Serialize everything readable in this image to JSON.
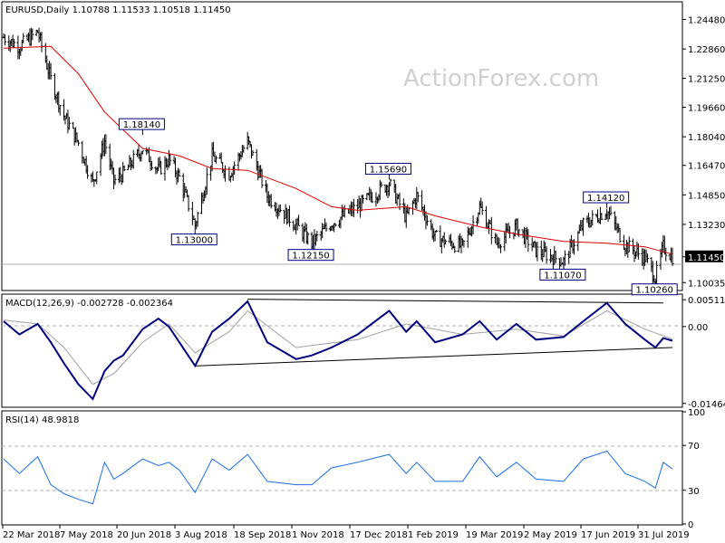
{
  "header": {
    "symbol_line": "EURUSD,Daily  1.10788 1.11533 1.10518 1.11450",
    "macd_label": "MACD(12,26,9) -0.002728 -0.002364",
    "rsi_label": "RSI(14) 48.9818"
  },
  "watermark": "ActionForex.com",
  "colors": {
    "background": "#ffffff",
    "frame": "#000000",
    "price_bars": "#000000",
    "moving_average": "#e00000",
    "macd_line": "#000080",
    "macd_signal": "#a0a0a0",
    "rsi_line": "#1a6ee6",
    "trendline": "#000000",
    "label_box_border": "#000080",
    "current_price_box": "#000000",
    "current_price_text": "#ffffff",
    "grid_dash": "#b0b0b0"
  },
  "chart_data": [
    {
      "type": "ohlc",
      "panel": "price",
      "y_ticks": [
        "1.24480",
        "1.22860",
        "1.21250",
        "1.19660",
        "1.18040",
        "1.16470",
        "1.14850",
        "1.13230",
        "1.11450",
        "1.10035"
      ],
      "ylim": [
        1.0965,
        1.254
      ],
      "current_price": "1.11450",
      "x_ticks": [
        "22 Mar 2018",
        "7 May 2018",
        "20 Jun 2018",
        "3 Aug 2018",
        "18 Sep 2018",
        "1 Nov 2018",
        "17 Dec 2018",
        "1 Feb 2019",
        "19 Mar 2019",
        "2 May 2019",
        "17 Jun 2019",
        "31 Jul 2019"
      ],
      "series_close": [
        [
          "2018-03-22",
          1.235
        ],
        [
          "2018-04-03",
          1.23
        ],
        [
          "2018-04-17",
          1.238
        ],
        [
          "2018-04-27",
          1.212
        ],
        [
          "2018-05-07",
          1.192
        ],
        [
          "2018-05-18",
          1.177
        ],
        [
          "2018-05-29",
          1.155
        ],
        [
          "2018-06-07",
          1.178
        ],
        [
          "2018-06-14",
          1.156
        ],
        [
          "2018-06-21",
          1.16
        ],
        [
          "2018-07-06",
          1.174
        ],
        [
          "2018-07-18",
          1.162
        ],
        [
          "2018-07-26",
          1.168
        ],
        [
          "2018-08-03",
          1.158
        ],
        [
          "2018-08-15",
          1.132
        ],
        [
          "2018-08-28",
          1.17
        ],
        [
          "2018-09-10",
          1.16
        ],
        [
          "2018-09-24",
          1.178
        ],
        [
          "2018-10-09",
          1.148
        ],
        [
          "2018-10-31",
          1.132
        ],
        [
          "2018-11-12",
          1.122
        ],
        [
          "2018-11-27",
          1.133
        ],
        [
          "2018-12-17",
          1.142
        ],
        [
          "2019-01-10",
          1.155
        ],
        [
          "2019-01-23",
          1.136
        ],
        [
          "2019-01-31",
          1.148
        ],
        [
          "2019-02-14",
          1.125
        ],
        [
          "2019-03-07",
          1.12
        ],
        [
          "2019-03-20",
          1.142
        ],
        [
          "2019-04-02",
          1.122
        ],
        [
          "2019-04-17",
          1.131
        ],
        [
          "2019-05-02",
          1.118
        ],
        [
          "2019-05-23",
          1.112
        ],
        [
          "2019-06-07",
          1.132
        ],
        [
          "2019-06-25",
          1.14
        ],
        [
          "2019-07-09",
          1.121
        ],
        [
          "2019-07-24",
          1.114
        ],
        [
          "2019-08-01",
          1.103
        ],
        [
          "2019-08-07",
          1.12
        ],
        [
          "2019-08-14",
          1.1145
        ]
      ],
      "moving_average": [
        [
          "2018-03-22",
          1.229
        ],
        [
          "2018-04-27",
          1.23
        ],
        [
          "2018-05-18",
          1.215
        ],
        [
          "2018-06-07",
          1.194
        ],
        [
          "2018-07-06",
          1.174
        ],
        [
          "2018-08-03",
          1.17
        ],
        [
          "2018-08-28",
          1.163
        ],
        [
          "2018-09-24",
          1.162
        ],
        [
          "2018-10-31",
          1.152
        ],
        [
          "2018-11-27",
          1.142
        ],
        [
          "2018-12-17",
          1.14
        ],
        [
          "2019-01-23",
          1.142
        ],
        [
          "2019-02-14",
          1.137
        ],
        [
          "2019-03-20",
          1.131
        ],
        [
          "2019-04-17",
          1.127
        ],
        [
          "2019-05-23",
          1.123
        ],
        [
          "2019-06-25",
          1.122
        ],
        [
          "2019-07-24",
          1.12
        ],
        [
          "2019-08-14",
          1.116
        ]
      ],
      "annotations": [
        {
          "text": "1.18140",
          "date": "2018-07-06",
          "value": 1.1814,
          "where": "above"
        },
        {
          "text": "1.13000",
          "date": "2018-08-15",
          "value": 1.13,
          "where": "below"
        },
        {
          "text": "1.15690",
          "date": "2019-01-10",
          "value": 1.1569,
          "where": "above"
        },
        {
          "text": "1.12150",
          "date": "2018-11-12",
          "value": 1.1215,
          "where": "below"
        },
        {
          "text": "1.14120",
          "date": "2019-06-25",
          "value": 1.1412,
          "where": "above"
        },
        {
          "text": "1.11070",
          "date": "2019-05-23",
          "value": 1.1107,
          "where": "below"
        },
        {
          "text": "1.10260",
          "date": "2019-08-01",
          "value": 1.1026,
          "where": "below"
        }
      ]
    },
    {
      "type": "line",
      "panel": "macd",
      "y_ticks": [
        "0.005114",
        "0.00",
        "-0.014647"
      ],
      "ylim": [
        -0.0152,
        0.006
      ],
      "macd": [
        [
          "2018-03-22",
          0.001
        ],
        [
          "2018-04-03",
          -0.0015
        ],
        [
          "2018-04-17",
          0.0005
        ],
        [
          "2018-04-27",
          -0.003
        ],
        [
          "2018-05-07",
          -0.007
        ],
        [
          "2018-05-18",
          -0.011
        ],
        [
          "2018-05-29",
          -0.0138
        ],
        [
          "2018-06-07",
          -0.0085
        ],
        [
          "2018-06-14",
          -0.0065
        ],
        [
          "2018-06-21",
          -0.0055
        ],
        [
          "2018-07-06",
          -0.0005
        ],
        [
          "2018-07-18",
          0.0015
        ],
        [
          "2018-07-26",
          0.0
        ],
        [
          "2018-08-03",
          -0.003
        ],
        [
          "2018-08-15",
          -0.0075
        ],
        [
          "2018-08-28",
          -0.001
        ],
        [
          "2018-09-10",
          0.0015
        ],
        [
          "2018-09-24",
          0.0048
        ],
        [
          "2018-10-09",
          -0.003
        ],
        [
          "2018-10-31",
          -0.0062
        ],
        [
          "2018-11-12",
          -0.0055
        ],
        [
          "2018-11-27",
          -0.004
        ],
        [
          "2018-12-17",
          -0.0015
        ],
        [
          "2019-01-10",
          0.003
        ],
        [
          "2019-01-23",
          -0.001
        ],
        [
          "2019-01-31",
          0.001
        ],
        [
          "2019-02-14",
          -0.003
        ],
        [
          "2019-03-07",
          -0.0015
        ],
        [
          "2019-03-20",
          0.001
        ],
        [
          "2019-04-02",
          -0.0025
        ],
        [
          "2019-04-17",
          0.0005
        ],
        [
          "2019-05-02",
          -0.0025
        ],
        [
          "2019-05-23",
          -0.002
        ],
        [
          "2019-06-07",
          0.001
        ],
        [
          "2019-06-25",
          0.0045
        ],
        [
          "2019-07-09",
          0.0005
        ],
        [
          "2019-07-24",
          -0.0025
        ],
        [
          "2019-08-01",
          -0.004
        ],
        [
          "2019-08-07",
          -0.0022
        ],
        [
          "2019-08-14",
          -0.0027
        ]
      ],
      "signal": [
        [
          "2018-03-22",
          0.0012
        ],
        [
          "2018-04-17",
          0.0005
        ],
        [
          "2018-05-07",
          -0.004
        ],
        [
          "2018-05-29",
          -0.011
        ],
        [
          "2018-06-14",
          -0.009
        ],
        [
          "2018-07-06",
          -0.003
        ],
        [
          "2018-07-26",
          0.0005
        ],
        [
          "2018-08-15",
          -0.005
        ],
        [
          "2018-09-10",
          -0.001
        ],
        [
          "2018-09-24",
          0.003
        ],
        [
          "2018-10-31",
          -0.004
        ],
        [
          "2018-12-17",
          -0.0025
        ],
        [
          "2019-01-23",
          0.0005
        ],
        [
          "2019-03-07",
          -0.0015
        ],
        [
          "2019-04-17",
          -0.0005
        ],
        [
          "2019-05-23",
          -0.0018
        ],
        [
          "2019-06-25",
          0.003
        ],
        [
          "2019-07-24",
          -0.0005
        ],
        [
          "2019-08-14",
          -0.0024
        ]
      ],
      "trendline_lower": [
        [
          "2018-08-15",
          -0.0075
        ],
        [
          "2019-08-14",
          -0.004
        ]
      ],
      "trendline_upper": [
        [
          "2018-09-24",
          0.0052
        ],
        [
          "2019-08-07",
          0.0045
        ]
      ]
    },
    {
      "type": "line",
      "panel": "rsi",
      "y_ticks": [
        "100",
        "70",
        "30",
        "0"
      ],
      "ylim": [
        0,
        100
      ],
      "levels": [
        70,
        30
      ],
      "values": [
        [
          "2018-03-22",
          58
        ],
        [
          "2018-04-03",
          45
        ],
        [
          "2018-04-17",
          60
        ],
        [
          "2018-04-27",
          35
        ],
        [
          "2018-05-07",
          27
        ],
        [
          "2018-05-18",
          22
        ],
        [
          "2018-05-29",
          18
        ],
        [
          "2018-06-07",
          55
        ],
        [
          "2018-06-14",
          40
        ],
        [
          "2018-06-21",
          45
        ],
        [
          "2018-07-06",
          58
        ],
        [
          "2018-07-18",
          52
        ],
        [
          "2018-07-26",
          55
        ],
        [
          "2018-08-03",
          48
        ],
        [
          "2018-08-15",
          28
        ],
        [
          "2018-08-28",
          58
        ],
        [
          "2018-09-10",
          48
        ],
        [
          "2018-09-24",
          62
        ],
        [
          "2018-10-09",
          38
        ],
        [
          "2018-10-31",
          35
        ],
        [
          "2018-11-12",
          35
        ],
        [
          "2018-11-27",
          50
        ],
        [
          "2018-12-17",
          55
        ],
        [
          "2019-01-10",
          62
        ],
        [
          "2019-01-23",
          45
        ],
        [
          "2019-01-31",
          55
        ],
        [
          "2019-02-14",
          38
        ],
        [
          "2019-03-07",
          38
        ],
        [
          "2019-03-20",
          60
        ],
        [
          "2019-04-02",
          42
        ],
        [
          "2019-04-17",
          55
        ],
        [
          "2019-05-02",
          40
        ],
        [
          "2019-05-23",
          38
        ],
        [
          "2019-06-07",
          58
        ],
        [
          "2019-06-25",
          65
        ],
        [
          "2019-07-09",
          45
        ],
        [
          "2019-07-24",
          38
        ],
        [
          "2019-08-01",
          32
        ],
        [
          "2019-08-07",
          55
        ],
        [
          "2019-08-14",
          49
        ]
      ]
    }
  ]
}
